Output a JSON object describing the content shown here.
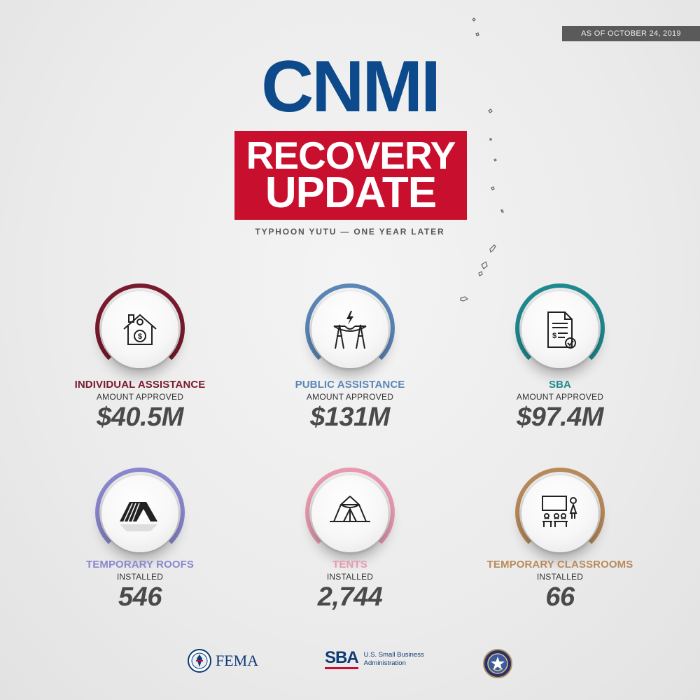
{
  "header": {
    "date_badge": "AS OF OCTOBER 24, 2019",
    "title_main": "CNMI",
    "title_line1": "RECOVERY",
    "title_line2": "UPDATE",
    "subtitle": "TYPHOON YUTU — ONE YEAR LATER"
  },
  "stats": [
    {
      "label": "INDIVIDUAL ASSISTANCE",
      "sublabel": "AMOUNT APPROVED",
      "value": "$40.5M",
      "color": "#7a1a2e",
      "icon": "house-dollar-icon"
    },
    {
      "label": "PUBLIC ASSISTANCE",
      "sublabel": "AMOUNT APPROVED",
      "value": "$131M",
      "color": "#5b86b8",
      "icon": "power-tower-icon"
    },
    {
      "label": "SBA",
      "sublabel": "AMOUNT APPROVED",
      "value": "$97.4M",
      "color": "#1f8a8f",
      "icon": "approved-document-icon"
    },
    {
      "label": "TEMPORARY ROOFS",
      "sublabel": "INSTALLED",
      "value": "546",
      "color": "#8a87cf",
      "icon": "roof-icon"
    },
    {
      "label": "TENTS",
      "sublabel": "INSTALLED",
      "value": "2,744",
      "color": "#e89ab0",
      "icon": "tent-icon"
    },
    {
      "label": "TEMPORARY CLASSROOMS",
      "sublabel": "INSTALLED",
      "value": "66",
      "color": "#b98a5a",
      "icon": "classroom-icon"
    }
  ],
  "footer": {
    "fema_label": "FEMA",
    "sba_mark": "SBA",
    "sba_name": "U.S. Small Business Administration"
  }
}
